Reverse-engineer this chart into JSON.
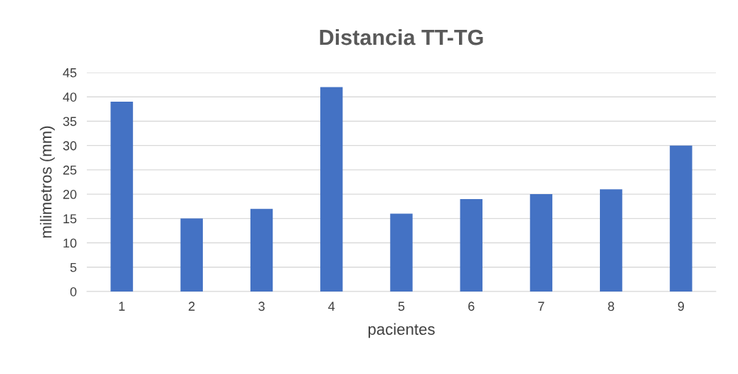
{
  "chart_data": {
    "type": "bar",
    "title": "Distancia TT-TG",
    "xlabel": "pacientes",
    "ylabel": "milimetros (mm)",
    "categories": [
      "1",
      "2",
      "3",
      "4",
      "5",
      "6",
      "7",
      "8",
      "9"
    ],
    "series": [
      {
        "color": "#4472c4",
        "values": [
          39,
          15,
          17,
          42,
          16,
          19,
          20,
          21,
          30
        ]
      }
    ],
    "ylim": [
      0,
      45
    ],
    "yticks": [
      0,
      5,
      10,
      15,
      20,
      25,
      30,
      35,
      40,
      45
    ],
    "grid": "y"
  }
}
